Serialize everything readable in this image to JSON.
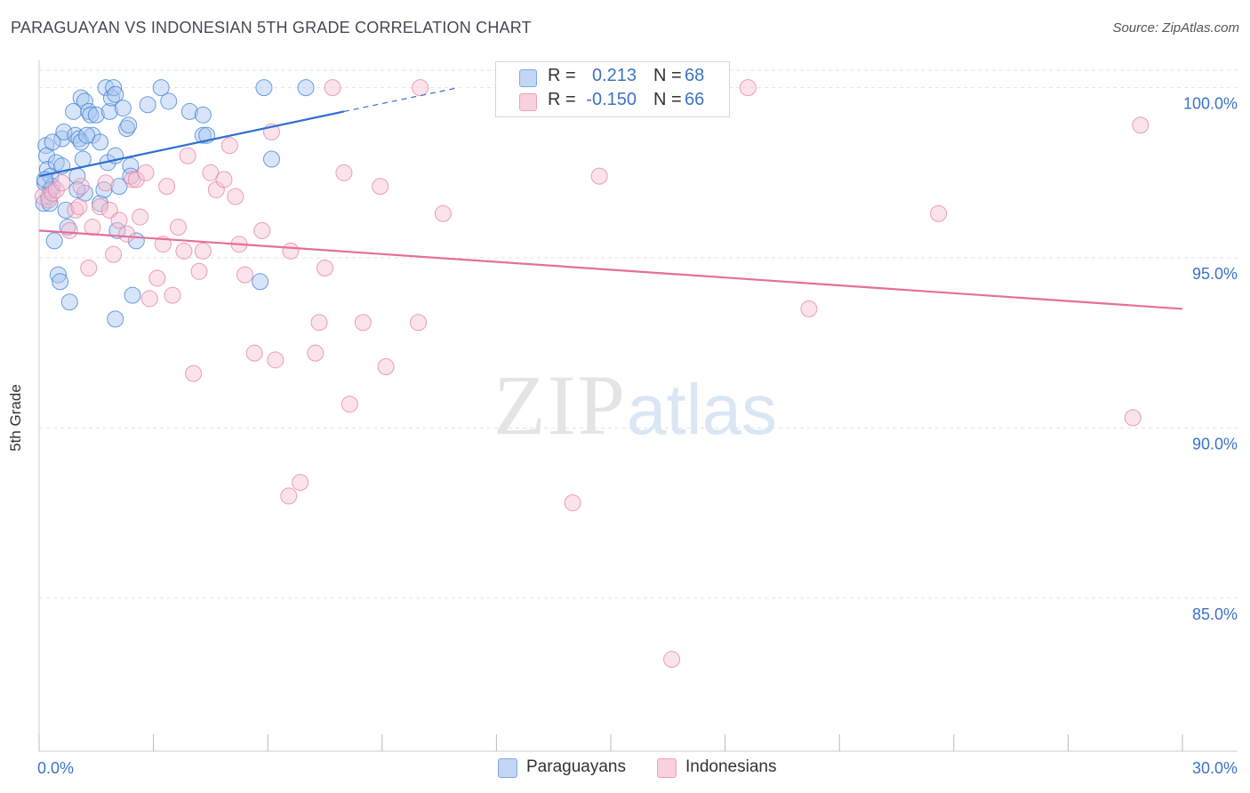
{
  "header": {
    "title": "PARAGUAYAN VS INDONESIAN 5TH GRADE CORRELATION CHART",
    "source": "Source: ZipAtlas.com"
  },
  "watermark": {
    "zip": "ZIP",
    "atlas": "atlas"
  },
  "legend_top": {
    "rows": [
      {
        "r_label": "R =",
        "r_value": "0.213",
        "n_label": "N =",
        "n_value": "68"
      },
      {
        "r_label": "R =",
        "r_value": "-0.150",
        "n_label": "N =",
        "n_value": "66"
      }
    ]
  },
  "legend_bottom": {
    "items": [
      "Paraguayans",
      "Indonesians"
    ]
  },
  "colors": {
    "blue_fill": "#a9c6ef",
    "blue_stroke": "#3c7fd6",
    "blue_line": "#2f6fcf",
    "pink_fill": "#f6c0d2",
    "pink_stroke": "#e57fa3",
    "pink_line": "#e56f98",
    "value_blue": "#3d73c4",
    "grid": "#e3e3e3"
  },
  "chart_data": {
    "type": "scatter",
    "title": "PARAGUAYAN VS INDONESIAN 5TH GRADE CORRELATION CHART",
    "xlabel": "",
    "ylabel": "5th Grade",
    "xlim": [
      0,
      30
    ],
    "ylim": [
      80.5,
      100.8
    ],
    "x_tick_labels": [
      "0.0%",
      "30.0%"
    ],
    "y_ticks": [
      85,
      90,
      95,
      100
    ],
    "y_tick_labels": [
      "85.0%",
      "90.0%",
      "95.0%",
      "100.0%"
    ],
    "series": [
      {
        "name": "Paraguayans",
        "r": 0.213,
        "n": 68,
        "trend": {
          "x0": 0.0,
          "y0": 97.4,
          "x1": 8.0,
          "y1": 99.3,
          "dash_to_x": 11.0,
          "dash_to_y": 100.0
        },
        "points": [
          [
            0.12,
            96.6
          ],
          [
            0.15,
            97.2
          ],
          [
            0.18,
            98.3
          ],
          [
            0.2,
            98.0
          ],
          [
            0.22,
            97.6
          ],
          [
            0.25,
            96.8
          ],
          [
            0.3,
            97.4
          ],
          [
            0.35,
            97.1
          ],
          [
            0.4,
            95.5
          ],
          [
            0.45,
            97.8
          ],
          [
            0.5,
            94.5
          ],
          [
            0.55,
            94.3
          ],
          [
            0.6,
            98.5
          ],
          [
            0.65,
            98.7
          ],
          [
            0.7,
            96.4
          ],
          [
            0.75,
            95.9
          ],
          [
            0.8,
            93.7
          ],
          [
            0.9,
            99.3
          ],
          [
            0.95,
            98.6
          ],
          [
            1.0,
            97.4
          ],
          [
            1.05,
            98.5
          ],
          [
            1.1,
            98.4
          ],
          [
            1.15,
            97.9
          ],
          [
            1.2,
            96.9
          ],
          [
            1.1,
            99.7
          ],
          [
            1.2,
            99.6
          ],
          [
            1.3,
            99.3
          ],
          [
            1.35,
            99.2
          ],
          [
            1.4,
            98.6
          ],
          [
            1.5,
            99.2
          ],
          [
            1.6,
            98.4
          ],
          [
            1.6,
            96.6
          ],
          [
            1.7,
            97.0
          ],
          [
            1.75,
            100.0
          ],
          [
            1.8,
            97.8
          ],
          [
            1.85,
            99.3
          ],
          [
            1.9,
            99.7
          ],
          [
            1.95,
            100.0
          ],
          [
            2.0,
            99.8
          ],
          [
            2.0,
            98.0
          ],
          [
            2.05,
            95.8
          ],
          [
            2.1,
            97.1
          ],
          [
            2.2,
            99.4
          ],
          [
            2.3,
            98.8
          ],
          [
            2.35,
            98.9
          ],
          [
            2.4,
            97.7
          ],
          [
            2.4,
            97.4
          ],
          [
            2.45,
            93.9
          ],
          [
            2.55,
            95.5
          ],
          [
            2.0,
            93.2
          ],
          [
            2.85,
            99.5
          ],
          [
            3.2,
            100.0
          ],
          [
            3.4,
            99.6
          ],
          [
            3.95,
            99.3
          ],
          [
            4.3,
            99.2
          ],
          [
            4.3,
            98.6
          ],
          [
            4.4,
            98.6
          ],
          [
            5.8,
            94.3
          ],
          [
            5.9,
            100.0
          ],
          [
            6.1,
            97.9
          ],
          [
            7.0,
            100.0
          ],
          [
            0.35,
            98.4
          ],
          [
            0.6,
            97.7
          ],
          [
            1.25,
            98.6
          ],
          [
            0.28,
            96.6
          ],
          [
            0.3,
            97.0
          ],
          [
            0.15,
            97.3
          ],
          [
            1.0,
            97.0
          ]
        ]
      },
      {
        "name": "Indonesians",
        "r": -0.15,
        "n": 66,
        "trend": {
          "x0": 0.0,
          "y0": 95.8,
          "x1": 30.0,
          "y1": 93.5
        },
        "points": [
          [
            0.1,
            96.8
          ],
          [
            0.25,
            96.7
          ],
          [
            0.35,
            96.9
          ],
          [
            0.45,
            97.0
          ],
          [
            0.6,
            97.2
          ],
          [
            0.8,
            95.8
          ],
          [
            0.95,
            96.4
          ],
          [
            1.1,
            97.1
          ],
          [
            1.3,
            94.7
          ],
          [
            1.4,
            95.9
          ],
          [
            1.6,
            96.5
          ],
          [
            1.75,
            97.2
          ],
          [
            1.85,
            96.4
          ],
          [
            1.95,
            95.1
          ],
          [
            2.1,
            96.1
          ],
          [
            2.3,
            95.7
          ],
          [
            2.45,
            97.3
          ],
          [
            2.55,
            97.3
          ],
          [
            2.65,
            96.2
          ],
          [
            2.8,
            97.5
          ],
          [
            2.9,
            93.8
          ],
          [
            3.1,
            94.4
          ],
          [
            3.25,
            95.4
          ],
          [
            3.35,
            97.1
          ],
          [
            3.5,
            93.9
          ],
          [
            3.65,
            95.9
          ],
          [
            3.8,
            95.2
          ],
          [
            3.9,
            98.0
          ],
          [
            4.05,
            91.6
          ],
          [
            4.2,
            94.6
          ],
          [
            4.3,
            95.2
          ],
          [
            4.5,
            97.5
          ],
          [
            4.65,
            97.0
          ],
          [
            4.85,
            97.3
          ],
          [
            5.0,
            98.3
          ],
          [
            5.15,
            96.8
          ],
          [
            5.25,
            95.4
          ],
          [
            5.4,
            94.5
          ],
          [
            5.65,
            92.2
          ],
          [
            5.85,
            95.8
          ],
          [
            6.1,
            98.7
          ],
          [
            6.2,
            92.0
          ],
          [
            6.55,
            88.0
          ],
          [
            6.6,
            95.2
          ],
          [
            6.85,
            88.4
          ],
          [
            7.25,
            92.2
          ],
          [
            7.35,
            93.1
          ],
          [
            7.5,
            94.7
          ],
          [
            7.7,
            100.0
          ],
          [
            8.0,
            97.5
          ],
          [
            8.15,
            90.7
          ],
          [
            8.5,
            93.1
          ],
          [
            8.95,
            97.1
          ],
          [
            9.1,
            91.8
          ],
          [
            9.95,
            93.1
          ],
          [
            10.0,
            100.0
          ],
          [
            10.6,
            96.3
          ],
          [
            14.0,
            87.8
          ],
          [
            14.7,
            97.4
          ],
          [
            16.6,
            83.2
          ],
          [
            18.6,
            100.0
          ],
          [
            20.2,
            93.5
          ],
          [
            23.6,
            96.3
          ],
          [
            28.7,
            90.3
          ],
          [
            28.9,
            98.9
          ],
          [
            1.05,
            96.5
          ]
        ]
      }
    ]
  }
}
